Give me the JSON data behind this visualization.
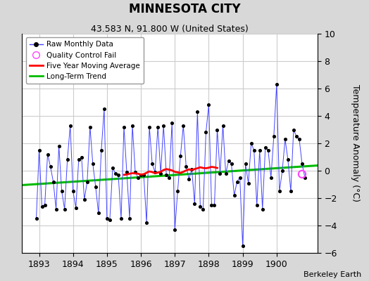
{
  "title": "MINNESOTA CITY",
  "subtitle": "43.583 N, 91.800 W (United States)",
  "ylabel": "Temperature Anomaly (°C)",
  "credit": "Berkeley Earth",
  "xlim": [
    1892.5,
    1901.2
  ],
  "ylim": [
    -6,
    10
  ],
  "yticks": [
    -6,
    -4,
    -2,
    0,
    2,
    4,
    6,
    8,
    10
  ],
  "xticks": [
    1893,
    1894,
    1895,
    1896,
    1897,
    1898,
    1899,
    1900
  ],
  "fig_bg_color": "#d8d8d8",
  "plot_bg_color": "#ffffff",
  "raw_color": "#4444ff",
  "dot_color": "#000000",
  "ma_color": "#ff0000",
  "trend_color": "#00bb00",
  "qc_color": "#ff44ff",
  "grid_color": "#cccccc",
  "raw_monthly_x": [
    1892.917,
    1893.0,
    1893.083,
    1893.167,
    1893.25,
    1893.333,
    1893.417,
    1893.5,
    1893.583,
    1893.667,
    1893.75,
    1893.833,
    1893.917,
    1894.0,
    1894.083,
    1894.167,
    1894.25,
    1894.333,
    1894.417,
    1894.5,
    1894.583,
    1894.667,
    1894.75,
    1894.833,
    1894.917,
    1895.0,
    1895.083,
    1895.167,
    1895.25,
    1895.333,
    1895.417,
    1895.5,
    1895.583,
    1895.667,
    1895.75,
    1895.833,
    1895.917,
    1896.0,
    1896.083,
    1896.167,
    1896.25,
    1896.333,
    1896.417,
    1896.5,
    1896.583,
    1896.667,
    1896.75,
    1896.833,
    1896.917,
    1897.0,
    1897.083,
    1897.167,
    1897.25,
    1897.333,
    1897.417,
    1897.5,
    1897.583,
    1897.667,
    1897.75,
    1897.833,
    1897.917,
    1898.0,
    1898.083,
    1898.167,
    1898.25,
    1898.333,
    1898.417,
    1898.5,
    1898.583,
    1898.667,
    1898.75,
    1898.833,
    1898.917,
    1899.0,
    1899.083,
    1899.167,
    1899.25,
    1899.333,
    1899.417,
    1899.5,
    1899.583,
    1899.667,
    1899.75,
    1899.833,
    1899.917,
    1900.0,
    1900.083,
    1900.167,
    1900.25,
    1900.333,
    1900.417,
    1900.5,
    1900.583,
    1900.667,
    1900.75,
    1900.833
  ],
  "raw_monthly_y": [
    -3.5,
    1.5,
    -2.6,
    -2.5,
    1.2,
    0.3,
    -0.8,
    -2.8,
    1.8,
    -1.5,
    -2.8,
    0.8,
    3.3,
    -1.5,
    -2.7,
    0.8,
    1.0,
    -2.1,
    -0.8,
    3.2,
    0.5,
    -1.2,
    -3.1,
    1.5,
    4.5,
    -3.5,
    -3.6,
    0.2,
    -0.2,
    -0.3,
    -3.5,
    3.2,
    -0.1,
    -3.5,
    3.3,
    -0.1,
    -0.5,
    -0.3,
    -0.3,
    -3.8,
    3.2,
    0.5,
    -0.1,
    3.2,
    -0.2,
    3.3,
    -0.3,
    -0.5,
    3.5,
    -4.3,
    -1.5,
    1.1,
    3.3,
    0.3,
    -0.6,
    0.1,
    -2.4,
    4.3,
    -2.6,
    -2.8,
    2.8,
    4.8,
    -2.5,
    -2.5,
    3.0,
    -0.2,
    3.3,
    -0.2,
    0.7,
    0.5,
    -1.8,
    -0.8,
    -0.5,
    -5.5,
    0.5,
    -0.9,
    2.0,
    1.5,
    -2.5,
    1.5,
    -2.8,
    1.7,
    1.5,
    -0.5,
    2.5,
    6.3,
    -1.5,
    0.0,
    2.3,
    0.8,
    -1.5,
    3.0,
    2.5,
    2.3,
    0.5,
    -0.5
  ],
  "moving_avg_x": [
    1895.5,
    1895.583,
    1895.667,
    1895.75,
    1895.833,
    1895.917,
    1896.0,
    1896.083,
    1896.167,
    1896.25,
    1896.333,
    1896.417,
    1896.5,
    1896.583,
    1896.667,
    1896.75,
    1896.833,
    1896.917,
    1897.0,
    1897.083,
    1897.167,
    1897.25,
    1897.333,
    1897.417,
    1897.5,
    1897.583,
    1897.667,
    1897.75,
    1897.833,
    1897.917,
    1898.0,
    1898.083,
    1898.167,
    1898.25
  ],
  "moving_avg_y": [
    -0.3,
    -0.28,
    -0.22,
    -0.18,
    -0.2,
    -0.22,
    -0.28,
    -0.25,
    -0.15,
    -0.05,
    -0.1,
    -0.18,
    -0.14,
    -0.08,
    0.05,
    0.12,
    0.08,
    0.02,
    -0.08,
    -0.12,
    -0.16,
    -0.08,
    0.02,
    0.1,
    0.05,
    0.12,
    0.18,
    0.25,
    0.2,
    0.18,
    0.22,
    0.28,
    0.25,
    0.2
  ],
  "trend_x": [
    1892.5,
    1901.2
  ],
  "trend_y": [
    -1.05,
    0.38
  ],
  "qc_fail_x": [
    1900.75
  ],
  "qc_fail_y": [
    -0.25
  ]
}
